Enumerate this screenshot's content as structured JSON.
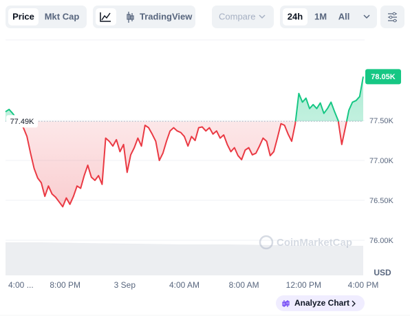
{
  "toolbar": {
    "price": "Price",
    "mkt_cap": "Mkt Cap",
    "tradingview": "TradingView",
    "compare": "Compare",
    "range_24h": "24h",
    "range_1m": "1M",
    "range_all": "All"
  },
  "chart_data": {
    "type": "line",
    "x": [
      0,
      0.24,
      0.48,
      0.72,
      0.96,
      1.2,
      1.44,
      1.68,
      1.92,
      2.16,
      2.4,
      2.64,
      2.88,
      3.12,
      3.36,
      3.6,
      3.84,
      4.08,
      4.32,
      4.56,
      4.8,
      5.04,
      5.28,
      5.52,
      5.76,
      6,
      6.24,
      6.48,
      6.72,
      6.96,
      7.2,
      7.44,
      7.68,
      7.92,
      8.16,
      8.4,
      8.64,
      8.88,
      9.12,
      9.36,
      9.6,
      9.84,
      10.08,
      10.32,
      10.56,
      10.8,
      11.04,
      11.28,
      11.52,
      11.76,
      12,
      12.24,
      12.48,
      12.72,
      12.96,
      13.2,
      13.44,
      13.68,
      13.92,
      14.16,
      14.4,
      14.64,
      14.88,
      15.12,
      15.36,
      15.6,
      15.84,
      16.08,
      16.32,
      16.56,
      16.8,
      17.04,
      17.28,
      17.52,
      17.76,
      18,
      18.24,
      18.48,
      18.72,
      18.96,
      19.2,
      19.44,
      19.68,
      19.92,
      20.16,
      20.4,
      20.64,
      20.88,
      21.12,
      21.36,
      21.6,
      21.84,
      22.08,
      22.32,
      22.56,
      22.8,
      23.04,
      23.28,
      23.52,
      23.76,
      24
    ],
    "values": [
      77610,
      77640,
      77590,
      77530,
      77470,
      77410,
      77300,
      77090,
      76900,
      76780,
      76720,
      76550,
      76680,
      76580,
      76540,
      76480,
      76420,
      76530,
      76450,
      76550,
      76680,
      76650,
      76810,
      76940,
      76790,
      76750,
      76810,
      76700,
      77280,
      77240,
      77180,
      77260,
      77110,
      77200,
      76850,
      77070,
      77160,
      77280,
      77180,
      77440,
      77410,
      77330,
      77240,
      77000,
      77090,
      77240,
      77370,
      77410,
      77370,
      77350,
      77300,
      77180,
      77300,
      77250,
      77410,
      77420,
      77370,
      77410,
      77330,
      77370,
      77280,
      77320,
      77200,
      77110,
      77160,
      77060,
      77010,
      77130,
      77160,
      77070,
      77090,
      77180,
      77280,
      77240,
      77060,
      77110,
      77280,
      77460,
      77440,
      77330,
      77240,
      77460,
      77840,
      77730,
      77780,
      77650,
      77700,
      77650,
      77720,
      77590,
      77650,
      77730,
      77610,
      77500,
      77200,
      77410,
      77630,
      77730,
      77750,
      77800,
      78050
    ],
    "up_color": "#16c784",
    "down_color": "#ea3943",
    "baseline": {
      "value": 77490,
      "label": "77.49K"
    },
    "current": {
      "value": 78050,
      "label": "78.05K"
    },
    "xlim": [
      0,
      24
    ],
    "xticks": [
      {
        "value": 0,
        "label": "4:00 ..."
      },
      {
        "value": 4,
        "label": "8:00 PM"
      },
      {
        "value": 8,
        "label": "3 Sep"
      },
      {
        "value": 12,
        "label": "4:00 AM"
      },
      {
        "value": 16,
        "label": "8:00 AM"
      },
      {
        "value": 20,
        "label": "12:00 PM"
      },
      {
        "value": 24,
        "label": "4:00 PM"
      }
    ],
    "ylim": [
      75560,
      78510
    ],
    "yticks": [
      {
        "value": 76000,
        "label": "76.00K"
      },
      {
        "value": 76500,
        "label": "76.50K"
      },
      {
        "value": 77000,
        "label": "77.00K"
      },
      {
        "value": 77500,
        "label": "77.50K"
      }
    ],
    "grid": true,
    "currency": "USD",
    "watermark": "CoinMarketCap",
    "button": "Analyze Chart"
  }
}
